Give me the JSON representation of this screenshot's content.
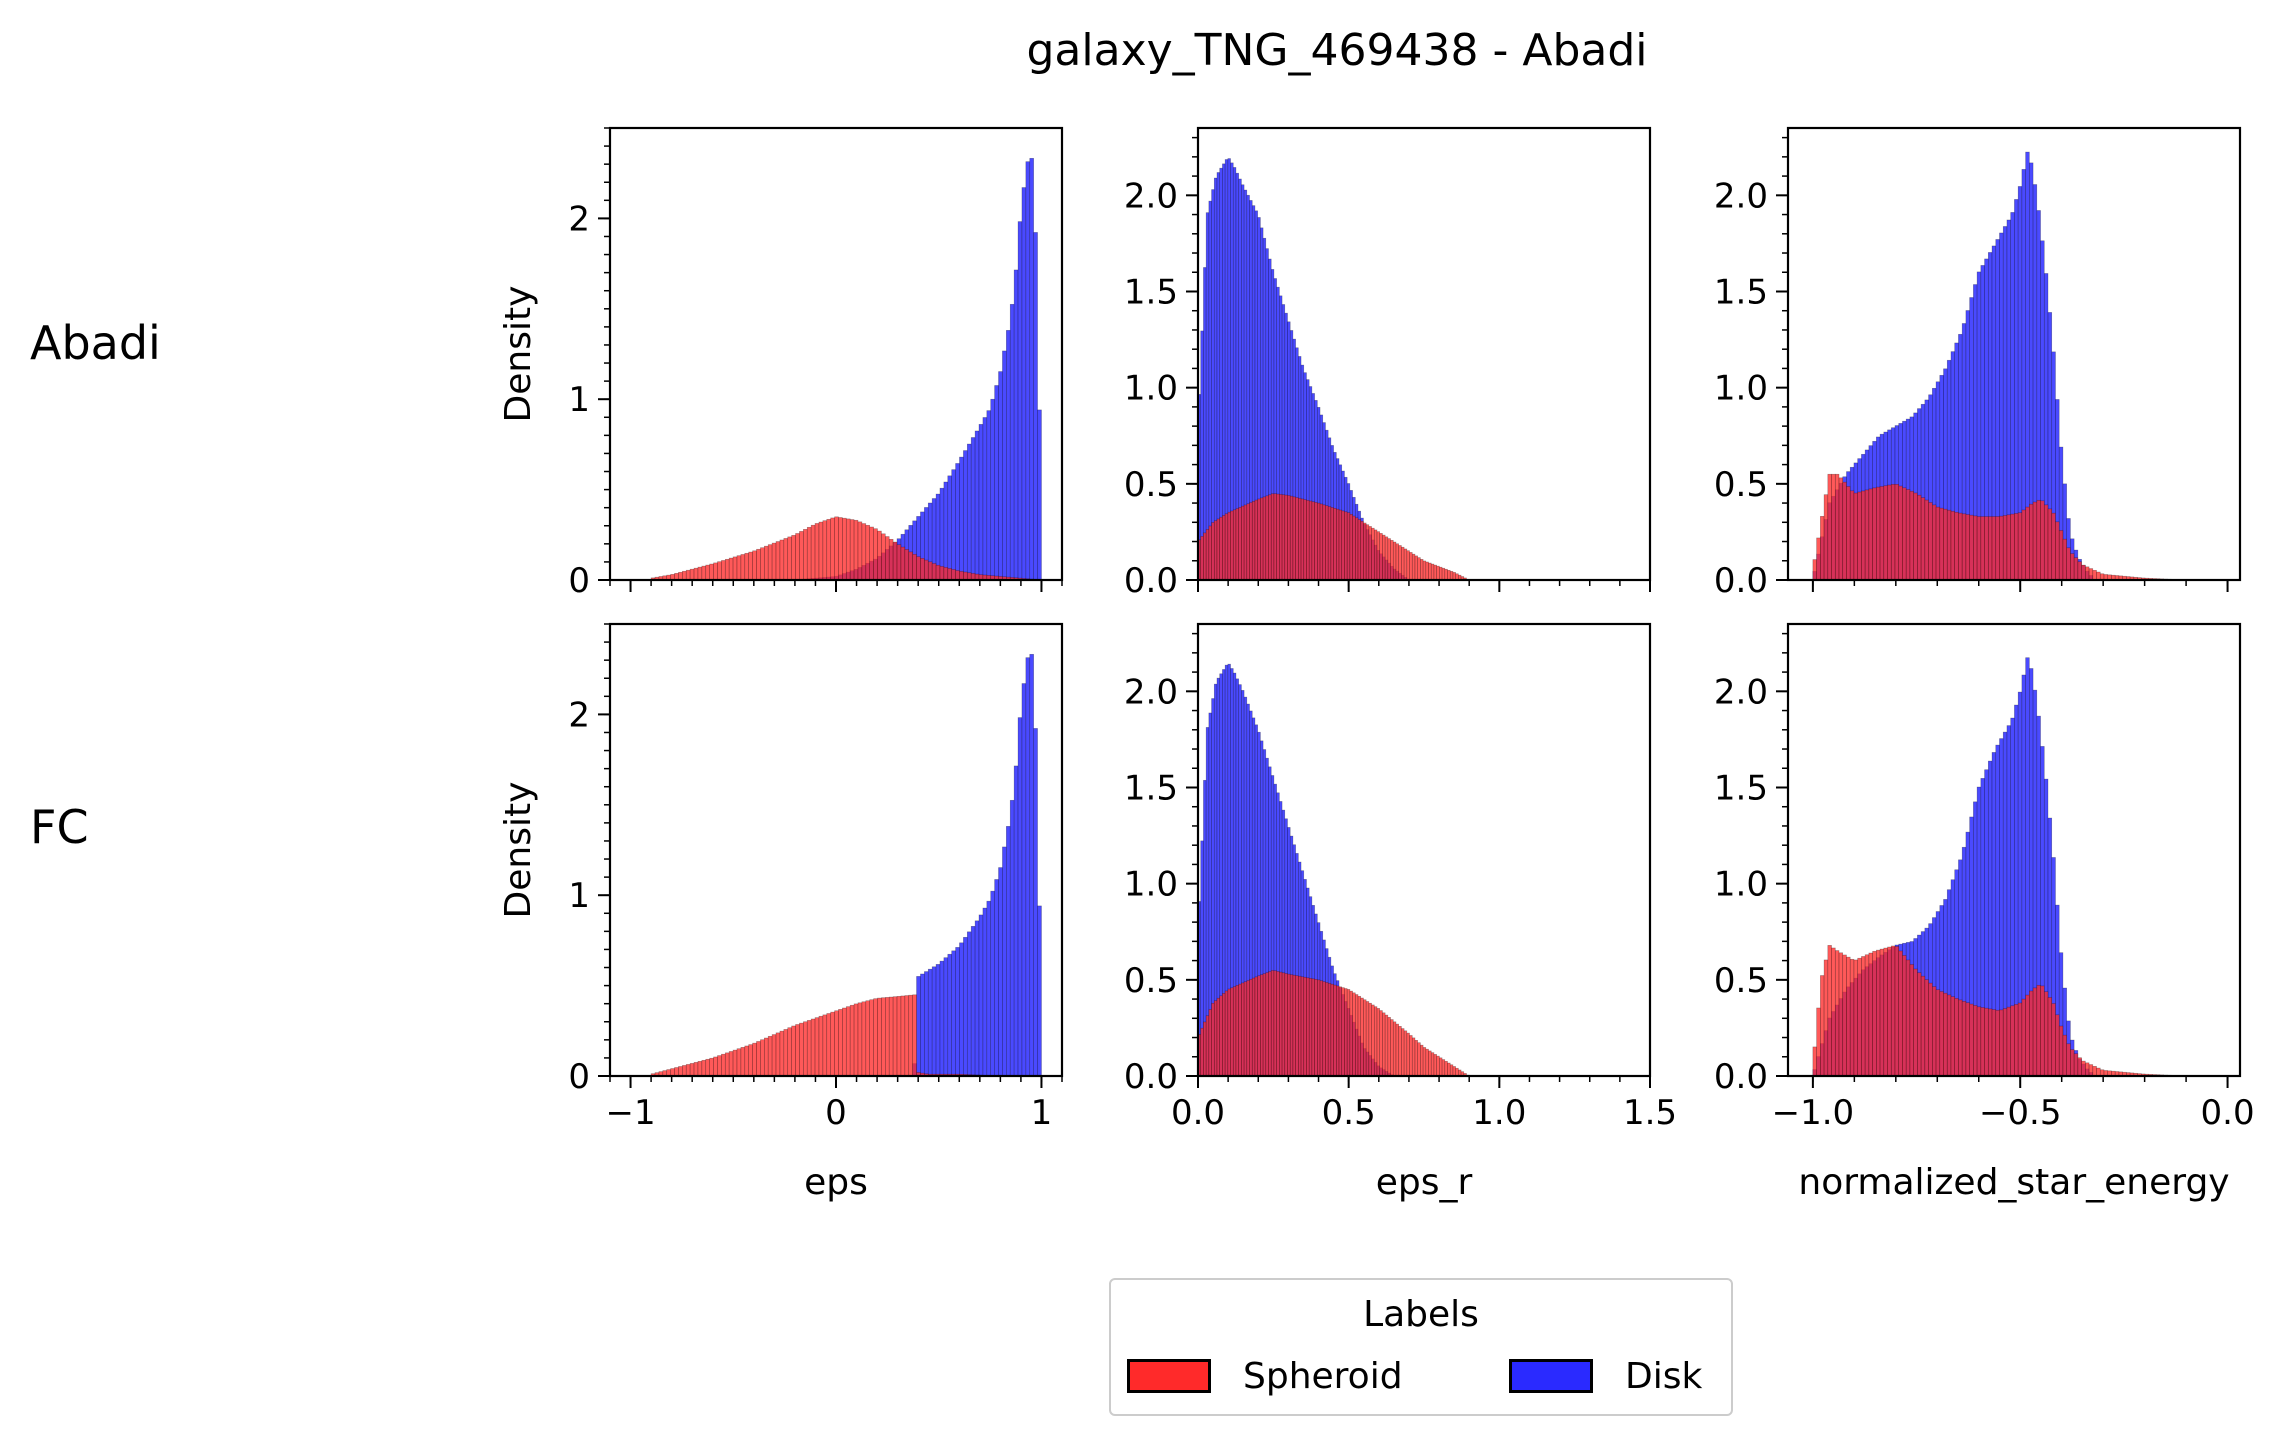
{
  "figure": {
    "title": "galaxy_TNG_469438 - Abadi",
    "row_labels": [
      "Abadi",
      "FC"
    ]
  },
  "legend": {
    "title": "Labels",
    "items": [
      {
        "label": "Spheroid",
        "color": "#ff2a2a"
      },
      {
        "label": "Disk",
        "color": "#2a2aff"
      }
    ]
  },
  "colors": {
    "spheroid": "#ff2a2a",
    "disk": "#2a2aff",
    "overlap": "#c8103a"
  },
  "chart_data": [
    {
      "type": "area",
      "row": "Abadi",
      "xlabel": "eps",
      "ylabel": "Density",
      "xlim": [
        -1.1,
        1.1
      ],
      "ylim": [
        0,
        2.5
      ],
      "xticks": [
        -1,
        0,
        1
      ],
      "yticks": [
        0,
        1,
        2
      ],
      "show_xticklabels": false,
      "series": [
        {
          "name": "Spheroid",
          "x": [
            -0.9,
            -0.8,
            -0.6,
            -0.4,
            -0.2,
            -0.1,
            0.0,
            0.1,
            0.2,
            0.3,
            0.4,
            0.5,
            0.6,
            0.7,
            0.8,
            0.9,
            1.0
          ],
          "values": [
            0.01,
            0.03,
            0.09,
            0.16,
            0.25,
            0.31,
            0.35,
            0.33,
            0.28,
            0.2,
            0.13,
            0.08,
            0.05,
            0.03,
            0.02,
            0.01,
            0.0
          ]
        },
        {
          "name": "Disk",
          "x": [
            -0.2,
            0.0,
            0.1,
            0.2,
            0.3,
            0.4,
            0.5,
            0.6,
            0.7,
            0.75,
            0.8,
            0.85,
            0.88,
            0.9,
            0.93,
            0.95,
            0.97,
            1.0
          ],
          "values": [
            0.0,
            0.02,
            0.06,
            0.12,
            0.22,
            0.35,
            0.48,
            0.66,
            0.85,
            0.95,
            1.15,
            1.45,
            1.75,
            2.05,
            2.3,
            2.38,
            2.0,
            0.45
          ]
        }
      ]
    },
    {
      "type": "area",
      "row": "Abadi",
      "xlabel": "eps_r",
      "ylabel": "",
      "xlim": [
        0.0,
        1.5
      ],
      "ylim": [
        0,
        2.35
      ],
      "xticks": [
        0.0,
        0.5,
        1.0,
        1.5
      ],
      "yticks": [
        0.0,
        0.5,
        1.0,
        1.5,
        2.0
      ],
      "show_xticklabels": false,
      "series": [
        {
          "name": "Spheroid",
          "x": [
            0.0,
            0.05,
            0.1,
            0.2,
            0.25,
            0.3,
            0.4,
            0.5,
            0.55,
            0.6,
            0.7,
            0.75,
            0.8,
            0.85,
            0.9
          ],
          "values": [
            0.2,
            0.3,
            0.35,
            0.42,
            0.45,
            0.44,
            0.4,
            0.35,
            0.3,
            0.25,
            0.15,
            0.1,
            0.07,
            0.04,
            0.0
          ]
        },
        {
          "name": "Disk",
          "x": [
            0.0,
            0.03,
            0.06,
            0.1,
            0.12,
            0.15,
            0.2,
            0.25,
            0.3,
            0.35,
            0.4,
            0.45,
            0.5,
            0.55,
            0.6,
            0.65,
            0.7
          ],
          "values": [
            0.8,
            1.9,
            2.1,
            2.2,
            2.15,
            2.05,
            1.9,
            1.6,
            1.35,
            1.1,
            0.9,
            0.68,
            0.5,
            0.3,
            0.15,
            0.06,
            0.0
          ]
        }
      ]
    },
    {
      "type": "area",
      "row": "Abadi",
      "xlabel": "normalized_star_energy",
      "ylabel": "",
      "xlim": [
        -1.06,
        0.03
      ],
      "ylim": [
        0,
        2.35
      ],
      "xticks": [
        -1.0,
        -0.5,
        0.0
      ],
      "yticks": [
        0.0,
        0.5,
        1.0,
        1.5,
        2.0
      ],
      "show_xticklabels": false,
      "series": [
        {
          "name": "Spheroid",
          "x": [
            -1.0,
            -0.98,
            -0.96,
            -0.94,
            -0.9,
            -0.85,
            -0.8,
            -0.75,
            -0.7,
            -0.65,
            -0.6,
            -0.55,
            -0.5,
            -0.47,
            -0.45,
            -0.42,
            -0.4,
            -0.38,
            -0.35,
            -0.3,
            -0.2,
            -0.1
          ],
          "values": [
            0.05,
            0.3,
            0.55,
            0.55,
            0.45,
            0.48,
            0.5,
            0.45,
            0.38,
            0.35,
            0.33,
            0.33,
            0.35,
            0.4,
            0.42,
            0.35,
            0.25,
            0.15,
            0.08,
            0.03,
            0.01,
            0.0
          ]
        },
        {
          "name": "Disk",
          "x": [
            -1.0,
            -0.96,
            -0.92,
            -0.88,
            -0.84,
            -0.8,
            -0.76,
            -0.72,
            -0.68,
            -0.64,
            -0.6,
            -0.56,
            -0.52,
            -0.5,
            -0.48,
            -0.46,
            -0.44,
            -0.42,
            -0.4,
            -0.38,
            -0.36,
            -0.34,
            -0.32
          ],
          "values": [
            0.0,
            0.4,
            0.55,
            0.65,
            0.75,
            0.8,
            0.85,
            0.95,
            1.1,
            1.3,
            1.6,
            1.75,
            1.9,
            2.05,
            2.25,
            2.0,
            1.65,
            1.2,
            0.65,
            0.25,
            0.12,
            0.05,
            0.0
          ]
        }
      ]
    },
    {
      "type": "area",
      "row": "FC",
      "xlabel": "eps",
      "ylabel": "Density",
      "xlim": [
        -1.1,
        1.1
      ],
      "ylim": [
        0,
        2.5
      ],
      "xticks": [
        -1,
        0,
        1
      ],
      "yticks": [
        0,
        1,
        2
      ],
      "xticklabels": [
        "−1",
        "0",
        "1"
      ],
      "show_xticklabels": true,
      "series": [
        {
          "name": "Spheroid",
          "x": [
            -0.9,
            -0.8,
            -0.6,
            -0.4,
            -0.2,
            0.0,
            0.1,
            0.2,
            0.3,
            0.39,
            0.4,
            0.45,
            0.6,
            0.8,
            1.0
          ],
          "values": [
            0.01,
            0.04,
            0.1,
            0.18,
            0.28,
            0.36,
            0.4,
            0.43,
            0.44,
            0.45,
            0.02,
            0.01,
            0.01,
            0.0,
            0.0
          ]
        },
        {
          "name": "Disk",
          "x": [
            0.38,
            0.4,
            0.5,
            0.6,
            0.7,
            0.75,
            0.8,
            0.85,
            0.88,
            0.9,
            0.93,
            0.95,
            0.97,
            1.0
          ],
          "values": [
            0.0,
            0.55,
            0.62,
            0.72,
            0.88,
            0.98,
            1.15,
            1.45,
            1.75,
            2.05,
            2.3,
            2.38,
            2.0,
            0.45
          ]
        }
      ]
    },
    {
      "type": "area",
      "row": "FC",
      "xlabel": "eps_r",
      "ylabel": "",
      "xlim": [
        0.0,
        1.5
      ],
      "ylim": [
        0,
        2.35
      ],
      "xticks": [
        0.0,
        0.5,
        1.0,
        1.5
      ],
      "yticks": [
        0.0,
        0.5,
        1.0,
        1.5,
        2.0
      ],
      "xticklabels": [
        "0.0",
        "0.5",
        "1.0",
        "1.5"
      ],
      "show_xticklabels": true,
      "series": [
        {
          "name": "Spheroid",
          "x": [
            0.0,
            0.05,
            0.1,
            0.2,
            0.25,
            0.3,
            0.4,
            0.5,
            0.55,
            0.6,
            0.7,
            0.75,
            0.8,
            0.85,
            0.9
          ],
          "values": [
            0.2,
            0.38,
            0.45,
            0.52,
            0.55,
            0.53,
            0.5,
            0.45,
            0.4,
            0.35,
            0.22,
            0.15,
            0.1,
            0.05,
            0.0
          ]
        },
        {
          "name": "Disk",
          "x": [
            0.0,
            0.03,
            0.06,
            0.1,
            0.12,
            0.15,
            0.2,
            0.25,
            0.3,
            0.35,
            0.4,
            0.45,
            0.5,
            0.55,
            0.6,
            0.65
          ],
          "values": [
            0.75,
            1.8,
            2.05,
            2.15,
            2.1,
            2.0,
            1.8,
            1.55,
            1.3,
            1.05,
            0.8,
            0.55,
            0.35,
            0.15,
            0.05,
            0.0
          ]
        }
      ]
    },
    {
      "type": "area",
      "row": "FC",
      "xlabel": "normalized_star_energy",
      "ylabel": "",
      "xlim": [
        -1.06,
        0.03
      ],
      "ylim": [
        0,
        2.35
      ],
      "xticks": [
        -1.0,
        -0.5,
        0.0
      ],
      "yticks": [
        0.0,
        0.5,
        1.0,
        1.5,
        2.0
      ],
      "xticklabels": [
        "−1.0",
        "−0.5",
        "0.0"
      ],
      "show_xticklabels": true,
      "series": [
        {
          "name": "Spheroid",
          "x": [
            -1.0,
            -0.98,
            -0.96,
            -0.94,
            -0.9,
            -0.85,
            -0.8,
            -0.75,
            -0.7,
            -0.65,
            -0.6,
            -0.55,
            -0.5,
            -0.47,
            -0.45,
            -0.42,
            -0.4,
            -0.38,
            -0.35,
            -0.3,
            -0.2,
            -0.1
          ],
          "values": [
            0.05,
            0.5,
            0.68,
            0.65,
            0.6,
            0.65,
            0.68,
            0.55,
            0.45,
            0.4,
            0.36,
            0.34,
            0.38,
            0.45,
            0.48,
            0.38,
            0.25,
            0.15,
            0.08,
            0.03,
            0.01,
            0.0
          ]
        },
        {
          "name": "Disk",
          "x": [
            -1.0,
            -0.96,
            -0.92,
            -0.88,
            -0.84,
            -0.8,
            -0.76,
            -0.72,
            -0.68,
            -0.64,
            -0.6,
            -0.56,
            -0.52,
            -0.5,
            -0.48,
            -0.46,
            -0.44,
            -0.42,
            -0.4,
            -0.38,
            -0.36,
            -0.34,
            -0.32
          ],
          "values": [
            0.0,
            0.3,
            0.45,
            0.55,
            0.62,
            0.68,
            0.7,
            0.78,
            0.92,
            1.15,
            1.5,
            1.7,
            1.85,
            2.0,
            2.2,
            1.95,
            1.6,
            1.15,
            0.6,
            0.22,
            0.1,
            0.04,
            0.0
          ]
        }
      ]
    }
  ]
}
